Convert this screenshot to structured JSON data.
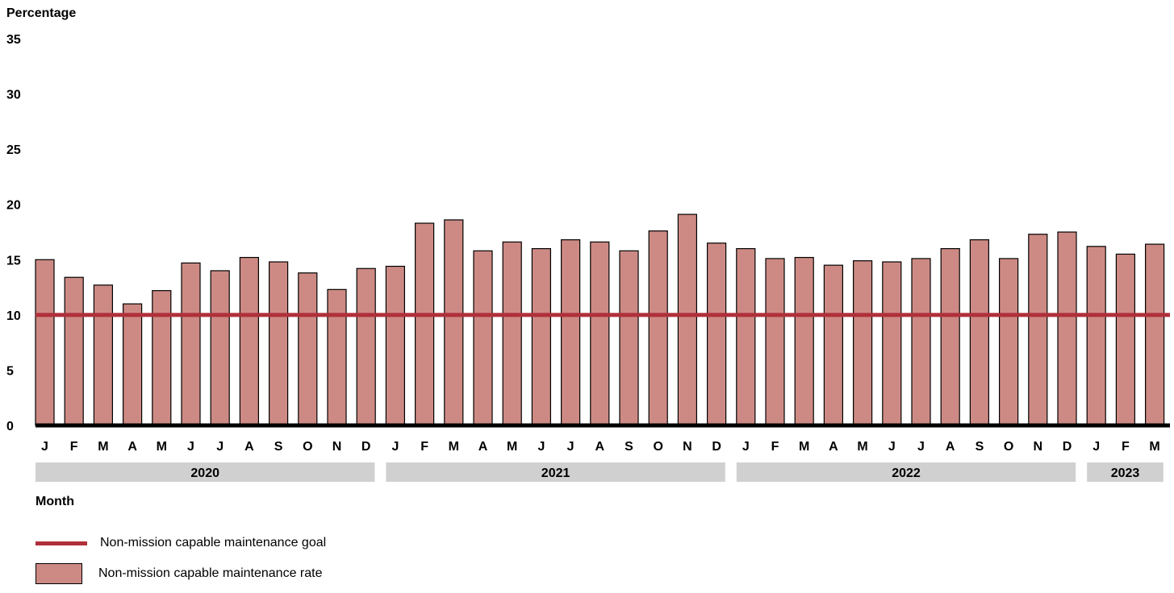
{
  "chart_data": {
    "type": "bar",
    "ylabel": "Percentage",
    "xlabel": "Month",
    "ylim": [
      0,
      35
    ],
    "yticks": [
      0,
      5,
      10,
      15,
      20,
      25,
      30,
      35
    ],
    "grid": false,
    "categories": [
      "J",
      "F",
      "M",
      "A",
      "M",
      "J",
      "J",
      "A",
      "S",
      "O",
      "N",
      "D",
      "J",
      "F",
      "M",
      "A",
      "M",
      "J",
      "J",
      "A",
      "S",
      "O",
      "N",
      "D",
      "J",
      "F",
      "M",
      "A",
      "M",
      "J",
      "J",
      "A",
      "S",
      "O",
      "N",
      "D",
      "J",
      "F",
      "M"
    ],
    "year_groups": [
      {
        "label": "2020",
        "count": 12
      },
      {
        "label": "2021",
        "count": 12
      },
      {
        "label": "2022",
        "count": 12
      },
      {
        "label": "2023",
        "count": 3
      }
    ],
    "series": [
      {
        "name": "Non-mission capable maintenance rate",
        "type": "bar",
        "color": "#cd8a84",
        "values": [
          15.0,
          13.4,
          12.7,
          11.0,
          12.2,
          14.7,
          14.0,
          15.2,
          14.8,
          13.8,
          12.3,
          14.2,
          14.4,
          18.3,
          18.6,
          15.8,
          16.6,
          16.0,
          16.8,
          16.6,
          15.8,
          17.6,
          19.1,
          16.5,
          16.0,
          15.1,
          15.2,
          14.5,
          14.9,
          14.8,
          15.1,
          16.0,
          16.8,
          15.1,
          17.3,
          17.5,
          16.2,
          15.5,
          16.4
        ]
      },
      {
        "name": "Non-mission capable maintenance goal",
        "type": "line",
        "color": "#b0303a",
        "value": 10
      }
    ]
  },
  "legend": {
    "goal_label": "Non-mission capable maintenance goal",
    "rate_label": "Non-mission capable maintenance rate"
  }
}
